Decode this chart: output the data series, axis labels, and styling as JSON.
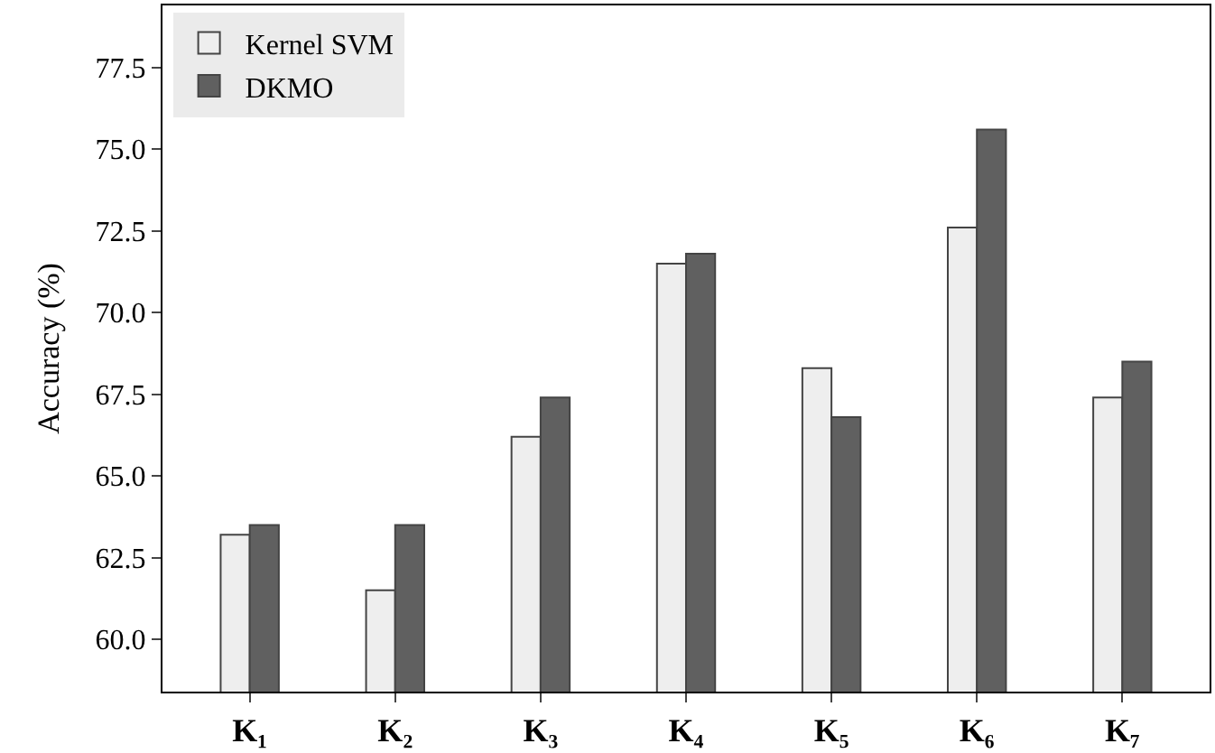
{
  "chart_data": {
    "type": "bar",
    "ylabel": "Accuracy (%)",
    "categories": [
      "K₁",
      "K₂",
      "K₃",
      "K₄",
      "K₅",
      "K₆",
      "K₇"
    ],
    "series": [
      {
        "name": "Kernel SVM",
        "color": "#eeeeee",
        "values": [
          63.2,
          61.5,
          66.2,
          71.5,
          68.3,
          72.6,
          67.4
        ]
      },
      {
        "name": "DKMO",
        "color": "#606060",
        "values": [
          63.5,
          63.5,
          67.4,
          71.8,
          66.8,
          75.6,
          68.5
        ]
      }
    ],
    "ylim": [
      58.4,
      79.4
    ],
    "yticks": [
      {
        "value": 60,
        "label": "60.0"
      },
      62.5,
      {
        "value": 65,
        "label": "65.0"
      },
      67.5,
      {
        "value": 70,
        "label": "70.0"
      },
      72.5,
      {
        "value": 75,
        "label": "75.0"
      },
      77.5
    ],
    "legend": "top left"
  }
}
